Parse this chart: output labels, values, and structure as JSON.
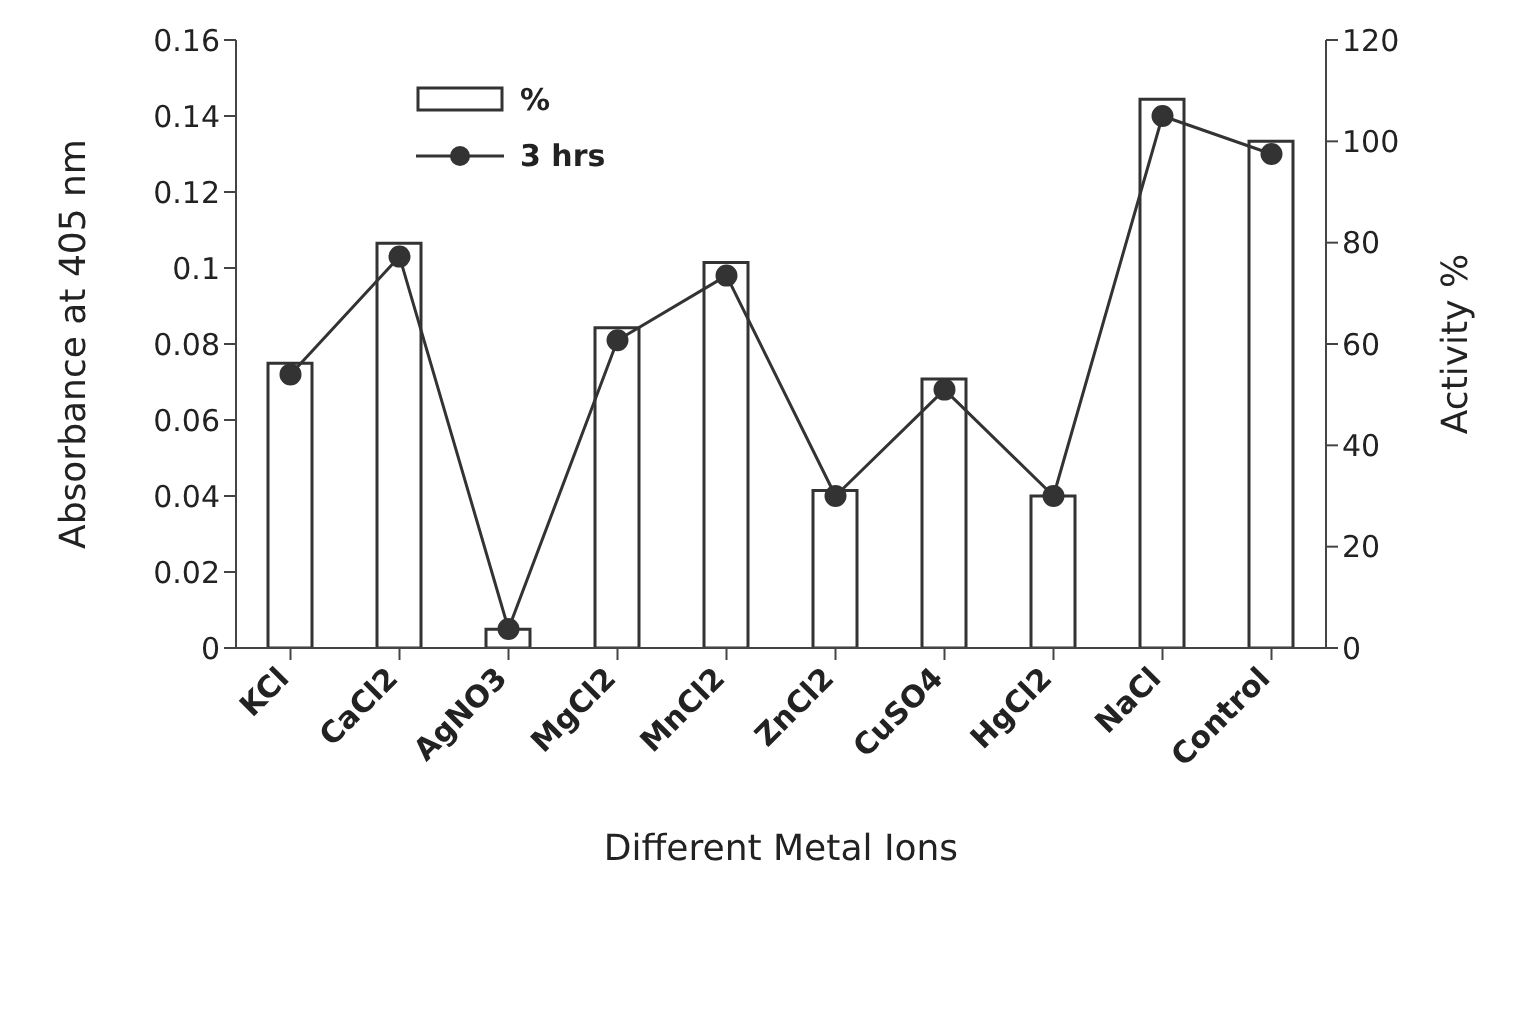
{
  "chart_data": {
    "type": "bar",
    "xlabel": "Different Metal Ions",
    "ylabel": "Absorbance at 405 nm",
    "y2label": "Activity %",
    "categories": [
      "KCl",
      "CaCl2",
      "AgNO3",
      "MgCl2",
      "MnCl2",
      "ZnCl2",
      "CuSO4",
      "HgCl2",
      "NaCl",
      "Control"
    ],
    "series": [
      {
        "name": "%",
        "axis": "y2",
        "color": "#ffffff",
        "values": [
          56.2,
          79.9,
          3.7,
          63.2,
          76.1,
          31.1,
          53.1,
          30,
          108.3,
          100
        ]
      },
      {
        "name": "3 hrs",
        "type": "line",
        "axis": "y",
        "color": "#333333",
        "marker": "circle",
        "values": [
          0.072,
          0.103,
          0.005,
          0.081,
          0.098,
          0.04,
          0.068,
          0.04,
          0.14,
          0.13
        ]
      }
    ],
    "ylim": [
      0,
      0.16
    ],
    "yticks": [
      0,
      0.02,
      0.04,
      0.06,
      0.08,
      0.1,
      0.12,
      0.14,
      0.16
    ],
    "y2lim": [
      0,
      120
    ],
    "y2ticks": [
      0,
      20,
      40,
      60,
      80,
      100,
      120
    ],
    "grid": false,
    "legend": "top left"
  }
}
